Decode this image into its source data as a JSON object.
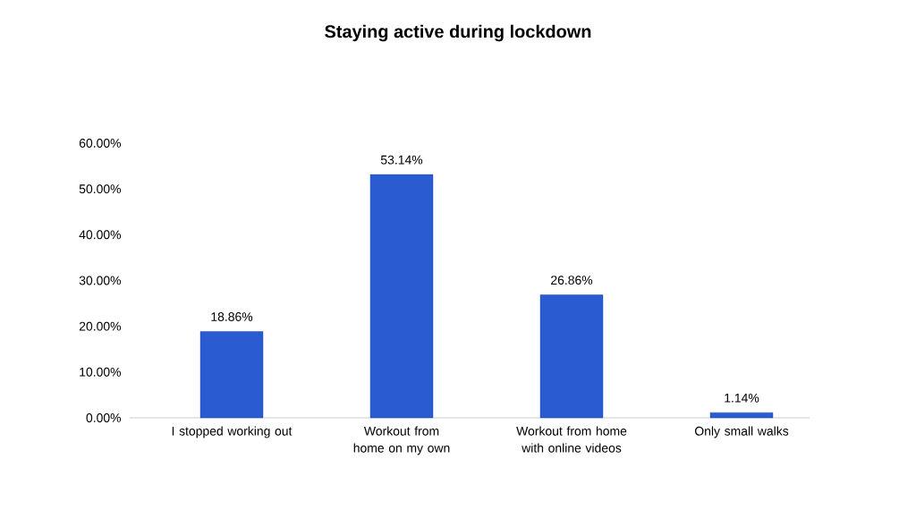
{
  "chart_data": {
    "type": "bar",
    "title": "Staying active during lockdown",
    "categories": [
      "I stopped working out",
      "Workout from home on my own",
      "Workout from home with online videos",
      "Only small walks"
    ],
    "values": [
      18.86,
      53.14,
      26.86,
      1.14
    ],
    "value_labels": [
      "18.86%",
      "53.14%",
      "26.86%",
      "1.14%"
    ],
    "color": "#2a5bd1",
    "ylim": [
      0,
      60
    ],
    "yticks": [
      {
        "value": 0,
        "label": "0.00%"
      },
      {
        "value": 10,
        "label": "10.00%"
      },
      {
        "value": 20,
        "label": "20.00%"
      },
      {
        "value": 30,
        "label": "30.00%"
      },
      {
        "value": 40,
        "label": "40.00%"
      },
      {
        "value": 50,
        "label": "50.00%"
      },
      {
        "value": 60,
        "label": "60.00%"
      }
    ],
    "grid": false
  }
}
